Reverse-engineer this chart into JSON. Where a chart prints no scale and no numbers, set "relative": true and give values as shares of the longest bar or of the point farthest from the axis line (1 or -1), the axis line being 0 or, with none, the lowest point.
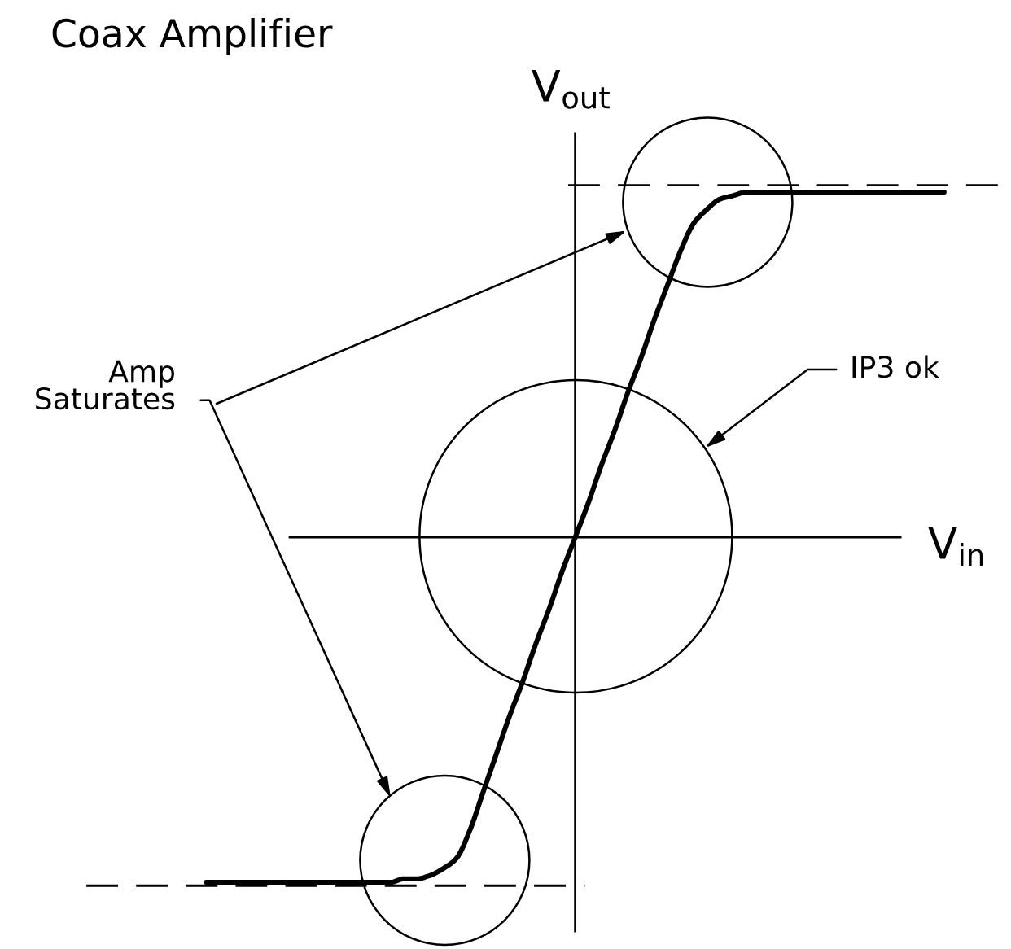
{
  "chart_data": {
    "type": "line",
    "title": "Coax Amplifier",
    "xlabel": "V$_{in}$",
    "ylabel": "V$_{out}$",
    "relative": true,
    "tick_labels": false,
    "categories": [
      null,
      null,
      null,
      null,
      null,
      null,
      null,
      null,
      null,
      null,
      null,
      null,
      null,
      null,
      null,
      null,
      null,
      null,
      null,
      null,
      null,
      null,
      null,
      null,
      null,
      null,
      null,
      null,
      null,
      null,
      null,
      null,
      null,
      null,
      null,
      null,
      null,
      null,
      null,
      null,
      null,
      null,
      null,
      null,
      null,
      null,
      null,
      null,
      null,
      null,
      null,
      null,
      null,
      null,
      null,
      null,
      null
    ],
    "series": [
      {
        "color": "#000000",
        "values": [
          -1.0,
          -1.0,
          -1.0,
          -1.0,
          -1.0,
          -1.0,
          -1.0,
          -1.0,
          -1.0,
          -1.0,
          -1.0,
          -1.0,
          -1.0,
          -1.0,
          -1.0,
          -0.99,
          -0.99,
          -0.98,
          -0.96,
          -0.93,
          -0.85,
          -0.74,
          -0.63,
          -0.52,
          -0.42,
          -0.31,
          -0.21,
          -0.1,
          0,
          0.1,
          0.21,
          0.31,
          0.42,
          0.52,
          0.63,
          0.73,
          0.83,
          0.91,
          0.95,
          0.98,
          0.99,
          1.0,
          1.0,
          1.0,
          1.0,
          1.0,
          1.0,
          1.0,
          1.0,
          1.0,
          1.0,
          1.0,
          1.0,
          1.0,
          1.0,
          1.0,
          1.0
        ]
      }
    ],
    "ref_lines": [
      {
        "axis": "y",
        "value": 1.02,
        "color": "#000000",
        "line_style": "dashed"
      },
      {
        "axis": "y",
        "value": -1.01,
        "color": "#000000",
        "line_style": "dashed"
      }
    ],
    "annotations": [
      "Amp\nSaturates",
      "IP3 ok"
    ]
  }
}
